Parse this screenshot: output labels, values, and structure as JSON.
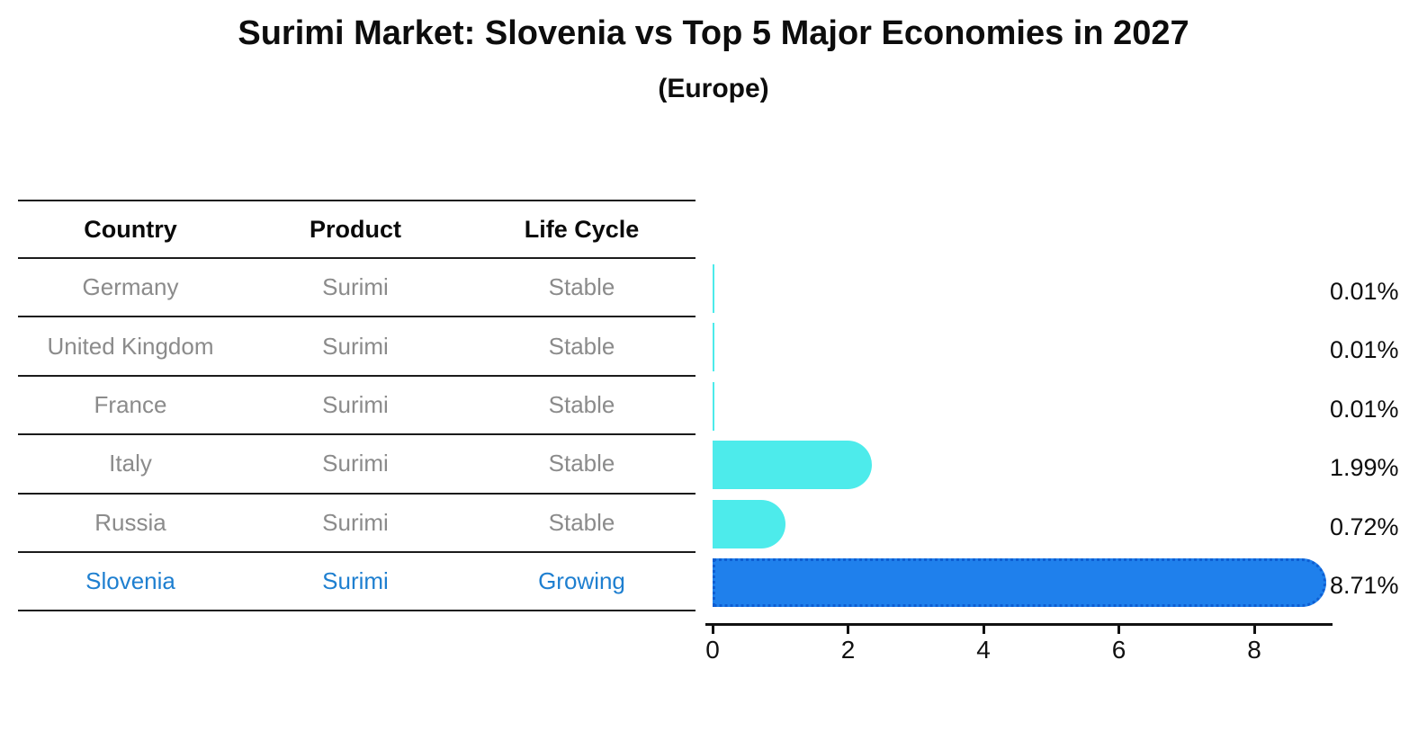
{
  "header": {
    "title": "Surimi Market: Slovenia vs Top 5 Major Economies in 2027",
    "subtitle": "(Europe)"
  },
  "table": {
    "headers": [
      "Country",
      "Product",
      "Life Cycle"
    ],
    "rows": [
      {
        "country": "Germany",
        "product": "Surimi",
        "life_cycle": "Stable",
        "highlight": false
      },
      {
        "country": "United Kingdom",
        "product": "Surimi",
        "life_cycle": "Stable",
        "highlight": false
      },
      {
        "country": "France",
        "product": "Surimi",
        "life_cycle": "Stable",
        "highlight": false
      },
      {
        "country": "Italy",
        "product": "Surimi",
        "life_cycle": "Stable",
        "highlight": false
      },
      {
        "country": "Russia",
        "product": "Surimi",
        "life_cycle": "Stable",
        "highlight": false
      },
      {
        "country": "Slovenia",
        "product": "Surimi",
        "life_cycle": "Growing",
        "highlight": true
      }
    ]
  },
  "chart_data": {
    "type": "bar",
    "orientation": "horizontal",
    "title": "Surimi Market: Slovenia vs Top 5 Major Economies in 2027",
    "subtitle": "(Europe)",
    "categories": [
      "Germany",
      "United Kingdom",
      "France",
      "Italy",
      "Russia",
      "Slovenia"
    ],
    "values": [
      0.01,
      0.01,
      0.01,
      1.99,
      0.72,
      8.71
    ],
    "value_labels": [
      "0.01%",
      "0.01%",
      "0.01%",
      "1.99%",
      "0.72%",
      "8.71%"
    ],
    "x_ticks": [
      "0",
      "2",
      "4",
      "6",
      "8"
    ],
    "x_tick_values": [
      0,
      2,
      4,
      6,
      8
    ],
    "xlim": [
      0,
      9.16
    ],
    "grid": false,
    "legend": "none",
    "highlight_index": 5,
    "colors": {
      "bar_default": "#4DEBEB",
      "bar_highlight": "#1F80EC",
      "bar_highlight_border": "#0E5ED2",
      "highlight_text": "#1e7fd0",
      "row_text": "#8b8b8b",
      "axis": "#111111"
    }
  }
}
